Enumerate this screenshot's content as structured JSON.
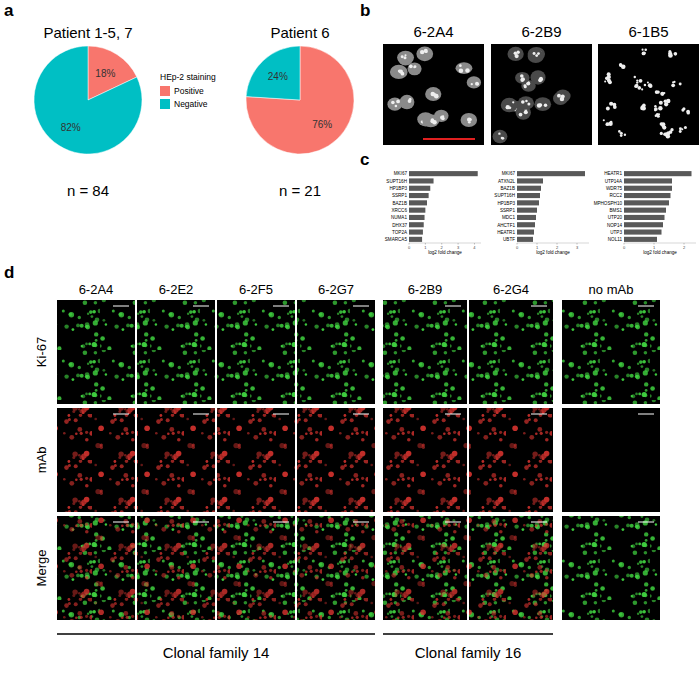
{
  "chart_data": [
    {
      "type": "pie",
      "title": "Patient 1-5, 7",
      "categories": [
        "Positive",
        "Negative"
      ],
      "values": [
        18,
        82
      ],
      "value_labels": [
        "18%",
        "82%"
      ],
      "data_labels": true,
      "colors": [
        "#f8766d",
        "#00bfc4"
      ],
      "legend": "right",
      "legend_title": "HEp-2 staining",
      "annotations": [
        "n = 84"
      ]
    },
    {
      "type": "pie",
      "title": "Patient 6",
      "categories": [
        "Positive",
        "Negative"
      ],
      "values": [
        76,
        24
      ],
      "value_labels": [
        "76%",
        "24%"
      ],
      "data_labels": true,
      "colors": [
        "#f8766d",
        "#00bfc4"
      ],
      "annotations": [
        "n = 21"
      ]
    },
    {
      "type": "bar",
      "orientation": "horizontal",
      "categories": [
        "MKI67",
        "SUPT16H",
        "HP1BP3",
        "SSRP1",
        "BAZ1B",
        "XRCC6",
        "NUMA1",
        "DHX37",
        "TOP2A",
        "SMARCA5"
      ],
      "values": [
        4.2,
        1.5,
        1.3,
        1.2,
        1.1,
        1.0,
        0.95,
        0.9,
        0.85,
        0.8
      ],
      "xlim": [
        0,
        4.4
      ],
      "xticks": [
        0,
        1,
        2,
        3,
        4
      ],
      "x_label": "log2 fold change",
      "color": "#595959"
    },
    {
      "type": "bar",
      "orientation": "horizontal",
      "categories": [
        "MKI67",
        "ATXN2L",
        "BAZ1B",
        "SUPT16H",
        "HP1BP3",
        "SSRP1",
        "MDC1",
        "AHCTF1",
        "HEATR1",
        "UBTF"
      ],
      "values": [
        3.4,
        1.3,
        1.2,
        1.15,
        1.1,
        1.0,
        0.95,
        0.9,
        0.85,
        0.8
      ],
      "xlim": [
        0,
        3.6
      ],
      "xticks": [
        0,
        1,
        2,
        3
      ],
      "x_label": "log2 fold change",
      "color": "#595959"
    },
    {
      "type": "bar",
      "orientation": "horizontal",
      "categories": [
        "HEATR1",
        "UTP14A",
        "WDR75",
        "RCC2",
        "MPHOSPH10",
        "BMS1",
        "UTP20",
        "NOP14",
        "UTP3",
        "NOL11"
      ],
      "values": [
        2.25,
        1.6,
        1.6,
        1.55,
        1.5,
        1.4,
        1.35,
        1.3,
        1.25,
        1.1
      ],
      "xlim": [
        0,
        2.4
      ],
      "xticks": [
        0,
        1,
        2
      ],
      "x_label": "log2 fold change",
      "color": "#595959"
    }
  ],
  "figure": {
    "panel_labels": [
      "a",
      "b",
      "c",
      "d"
    ],
    "b": {
      "images": [
        "6-2A4",
        "6-2B9",
        "6-1B5"
      ]
    },
    "d": {
      "rows": [
        "Ki-67",
        "mAb",
        "Merge"
      ],
      "groups": [
        {
          "label": "Clonal family 14",
          "columns": [
            "6-2A4",
            "6-2E2",
            "6-2F5",
            "6-2G7"
          ]
        },
        {
          "label": "Clonal family 16",
          "columns": [
            "6-2B9",
            "6-2G4"
          ]
        },
        {
          "columns": [
            "no mAb"
          ]
        }
      ]
    }
  }
}
